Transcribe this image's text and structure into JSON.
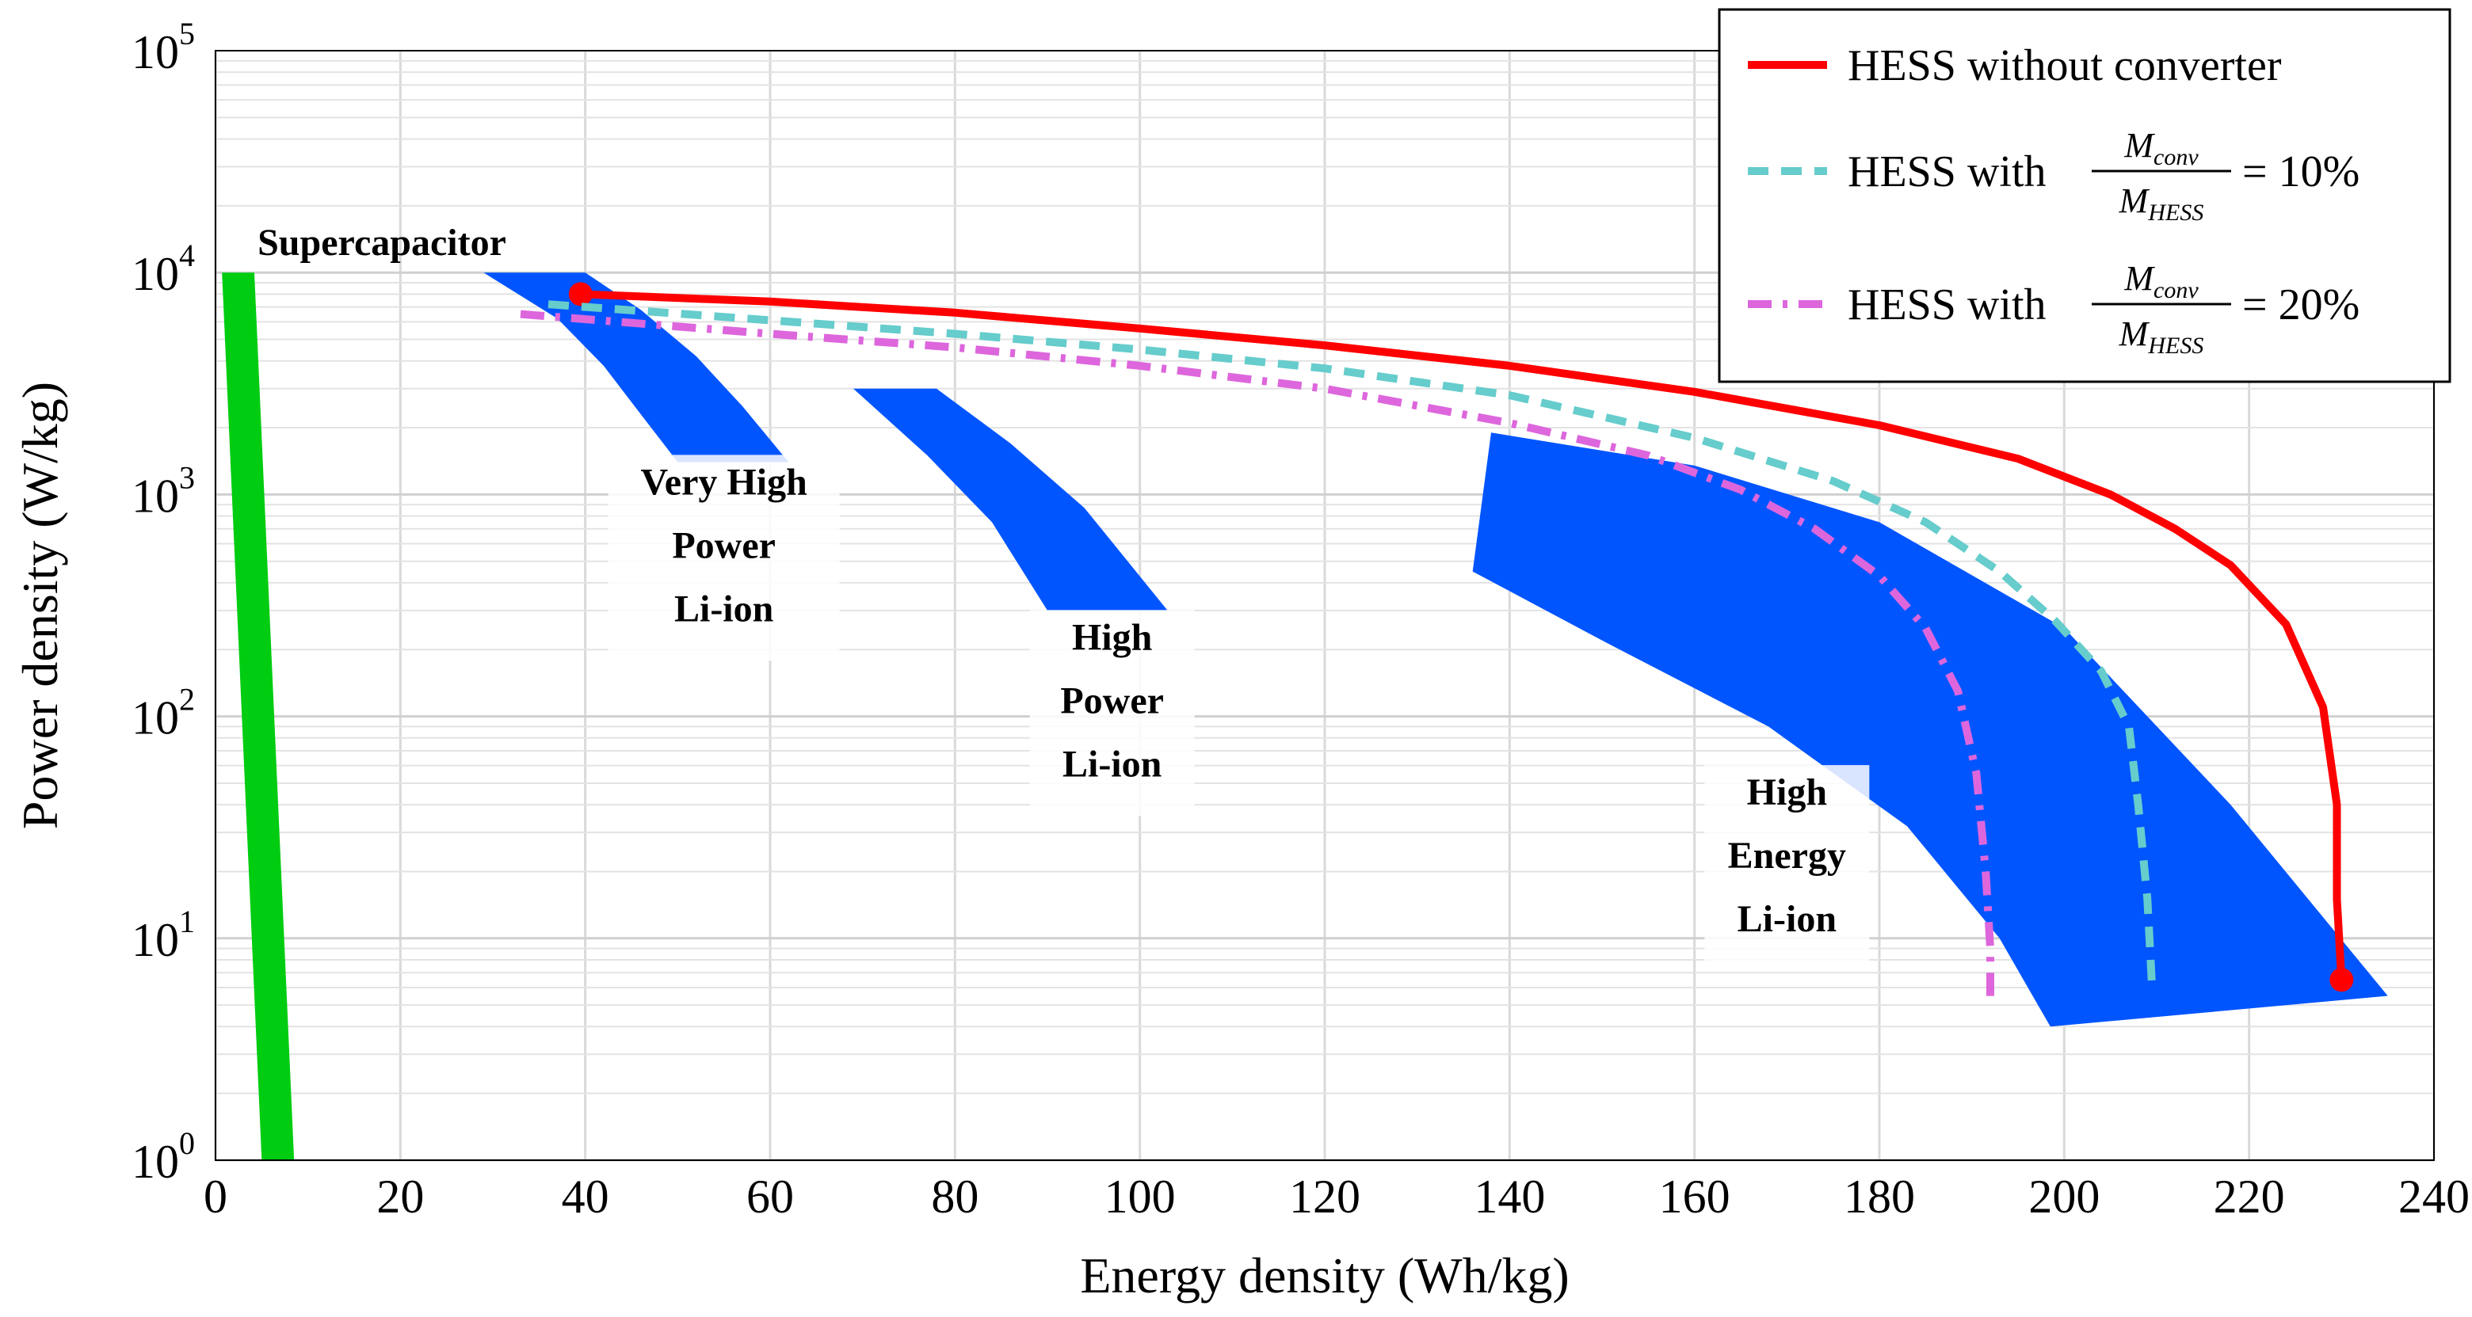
{
  "chart_data": {
    "type": "line",
    "xlabel": "Energy density (Wh/kg)",
    "ylabel": "Power density (W/kg)",
    "xlim": [
      0,
      240
    ],
    "ylim": [
      1,
      100000
    ],
    "yscale": "log",
    "x_ticks": [
      "0",
      "20",
      "40",
      "60",
      "80",
      "100",
      "120",
      "140",
      "160",
      "180",
      "200",
      "220",
      "240"
    ],
    "y_ticks": [
      {
        "base": "10",
        "exp": "0",
        "value": 1
      },
      {
        "base": "10",
        "exp": "1",
        "value": 10
      },
      {
        "base": "10",
        "exp": "2",
        "value": 100
      },
      {
        "base": "10",
        "exp": "3",
        "value": 1000
      },
      {
        "base": "10",
        "exp": "4",
        "value": 10000
      },
      {
        "base": "10",
        "exp": "5",
        "value": 100000
      }
    ],
    "regions": [
      {
        "name": "Supercapacitor",
        "color": "#00cc11",
        "polygon": [
          [
            0.7,
            10000
          ],
          [
            4.2,
            10000
          ],
          [
            8.5,
            1
          ],
          [
            5.0,
            1
          ]
        ]
      },
      {
        "name": "Very High Power Li-ion",
        "color": "#0055ff",
        "polygon": [
          [
            29,
            10000
          ],
          [
            40,
            10000
          ],
          [
            46,
            6800
          ],
          [
            52,
            4200
          ],
          [
            57,
            2500
          ],
          [
            62,
            1400
          ],
          [
            50,
            1400
          ],
          [
            46,
            2300
          ],
          [
            42,
            3800
          ],
          [
            37,
            6200
          ]
        ]
      },
      {
        "name": "High Power Li-ion",
        "color": "#0055ff",
        "polygon": [
          [
            69,
            3000
          ],
          [
            78,
            3000
          ],
          [
            86,
            1700
          ],
          [
            94,
            870
          ],
          [
            103,
            300
          ],
          [
            90,
            300
          ],
          [
            84,
            750
          ],
          [
            77,
            1500
          ]
        ]
      },
      {
        "name": "High Energy Li-ion",
        "color": "#0055ff",
        "polygon": [
          [
            138,
            1900
          ],
          [
            160,
            1350
          ],
          [
            180,
            750
          ],
          [
            200,
            250
          ],
          [
            218,
            40
          ],
          [
            235,
            5.5
          ],
          [
            198.5,
            4
          ],
          [
            193,
            10
          ],
          [
            183,
            32
          ],
          [
            168,
            90
          ],
          [
            150,
            220
          ],
          [
            136,
            450
          ]
        ]
      }
    ],
    "series": [
      {
        "name": "HESS without converter",
        "color": "#ff0000",
        "style": "solid",
        "x": [
          39.5,
          60,
          80,
          100,
          120,
          140,
          160,
          180,
          195,
          205,
          212,
          218,
          224,
          228,
          229.5,
          229.5,
          230
        ],
        "y": [
          8000,
          7400,
          6600,
          5600,
          4700,
          3800,
          2900,
          2050,
          1450,
          1000,
          700,
          480,
          260,
          110,
          40,
          15,
          6.5
        ],
        "endpoints": [
          [
            39.5,
            8000
          ],
          [
            230,
            6.5
          ]
        ]
      },
      {
        "name": "HESS with",
        "ratio_num": "M",
        "ratio_num_sub": "conv",
        "ratio_den": "M",
        "ratio_den_sub": "HESS",
        "value": "= 10%",
        "color": "#66cccc",
        "style": "dashed",
        "x": [
          36,
          60,
          80,
          100,
          120,
          140,
          160,
          175,
          185,
          193,
          199,
          204,
          207,
          208,
          209,
          209.5
        ],
        "y": [
          7200,
          6100,
          5300,
          4500,
          3700,
          2800,
          1800,
          1150,
          750,
          450,
          270,
          160,
          90,
          40,
          15,
          6
        ]
      },
      {
        "name": "HESS with",
        "ratio_num": "M",
        "ratio_num_sub": "conv",
        "ratio_den": "M",
        "ratio_den_sub": "HESS",
        "value": "= 20%",
        "color": "#dd66dd",
        "style": "dashdot",
        "x": [
          33,
          60,
          80,
          100,
          120,
          140,
          155,
          165,
          173,
          180,
          185,
          188.5,
          190.5,
          191.5,
          192,
          192
        ],
        "y": [
          6500,
          5300,
          4600,
          3800,
          3000,
          2100,
          1500,
          1050,
          700,
          430,
          250,
          130,
          55,
          20,
          9,
          5.5
        ]
      }
    ],
    "annotations": [
      {
        "lines": [
          "Supercapacitor"
        ],
        "x": 18,
        "y": 12000
      },
      {
        "lines": [
          "Very High",
          "Power",
          "Li-ion"
        ],
        "x": 55,
        "y": 1000
      },
      {
        "lines": [
          "High",
          "Power",
          "Li-ion"
        ],
        "x": 97,
        "y": 200
      },
      {
        "lines": [
          "High",
          "Energy",
          "Li-ion"
        ],
        "x": 170,
        "y": 40
      }
    ],
    "legend": {
      "position": "top-right"
    }
  }
}
